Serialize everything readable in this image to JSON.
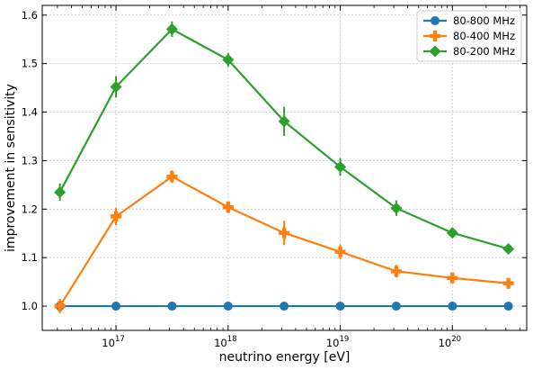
{
  "chart_data": {
    "type": "line",
    "xlabel": "neutrino energy [eV]",
    "ylabel": "improvement in sensitivity",
    "xscale": "log",
    "xlim": [
      2.2e+16,
      4.6e+20
    ],
    "ylim": [
      0.95,
      1.62
    ],
    "x_ticks": [
      {
        "value": 1e+17,
        "base": "10",
        "exp": "17"
      },
      {
        "value": 1e+18,
        "base": "10",
        "exp": "18"
      },
      {
        "value": 1e+19,
        "base": "10",
        "exp": "19"
      },
      {
        "value": 1e+20,
        "base": "10",
        "exp": "20"
      }
    ],
    "y_ticks": [
      1.0,
      1.1,
      1.2,
      1.3,
      1.4,
      1.5,
      1.6
    ],
    "y_tick_labels": [
      "1.0",
      "1.1",
      "1.2",
      "1.3",
      "1.4",
      "1.5",
      "1.6"
    ],
    "grid": true,
    "legend_position": "top-right",
    "x": [
      3.16e+16,
      1e+17,
      3.16e+17,
      1e+18,
      3.16e+18,
      1e+19,
      3.16e+19,
      1e+20,
      3.16e+20
    ],
    "series": [
      {
        "name": "80-800 MHz",
        "color": "#1f77b4",
        "marker": "circle",
        "values": [
          1.0,
          1.0,
          1.0,
          1.0,
          1.0,
          1.0,
          1.0,
          1.0,
          1.0
        ],
        "errors": [
          0,
          0,
          0,
          0,
          0,
          0,
          0,
          0,
          0
        ]
      },
      {
        "name": "80-400 MHz",
        "color": "#ff7f0e",
        "marker": "x",
        "values": [
          1.0,
          1.185,
          1.267,
          1.204,
          1.151,
          1.112,
          1.072,
          1.058,
          1.047
        ],
        "errors": [
          0.015,
          0.018,
          0.013,
          0.012,
          0.025,
          0.015,
          0.013,
          0.01,
          0.01
        ]
      },
      {
        "name": "80-200 MHz",
        "color": "#2ca02c",
        "marker": "diamond",
        "values": [
          1.235,
          1.452,
          1.571,
          1.508,
          1.381,
          1.287,
          1.202,
          1.151,
          1.118
        ],
        "errors": [
          0.018,
          0.022,
          0.016,
          0.014,
          0.03,
          0.018,
          0.016,
          0.01,
          0.008
        ]
      }
    ]
  }
}
